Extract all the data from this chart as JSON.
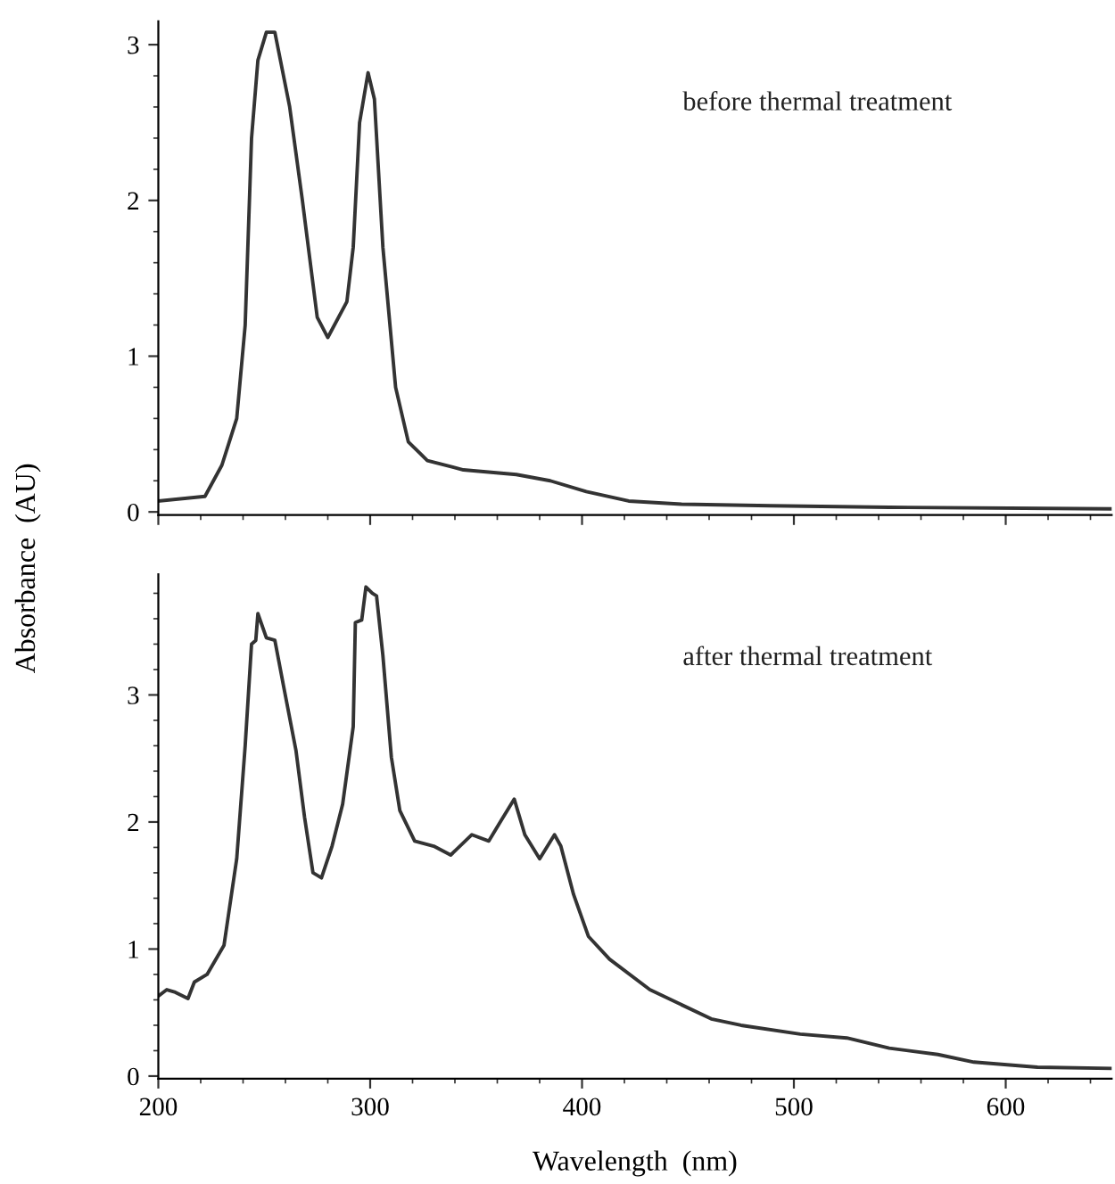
{
  "chart_data": [
    {
      "type": "line",
      "annotations": [
        "before thermal treatment"
      ],
      "xlim": [
        200,
        650
      ],
      "xticks": [
        {
          "value": 200,
          "label": null
        },
        {
          "value": 300,
          "label": null
        },
        {
          "value": 400,
          "label": null
        },
        {
          "value": 500,
          "label": null
        },
        {
          "value": 600,
          "label": null
        }
      ],
      "ylim": [
        -0.02,
        3.15
      ],
      "yticks": [
        0,
        1,
        2,
        3
      ],
      "tick_labels": "y",
      "grid": false,
      "legend": false,
      "series": [
        {
          "color": "#333333",
          "x": [
            200,
            222,
            230,
            237,
            241,
            244,
            247,
            251,
            255,
            262,
            268,
            275,
            280,
            289,
            292,
            295,
            299,
            302,
            306,
            312,
            318,
            327,
            344,
            369,
            385,
            402,
            422,
            447,
            489,
            545,
            650
          ],
          "values": [
            0.07,
            0.1,
            0.3,
            0.6,
            1.2,
            2.4,
            2.9,
            3.08,
            3.08,
            2.6,
            2.0,
            1.25,
            1.12,
            1.35,
            1.7,
            2.5,
            2.82,
            2.65,
            1.7,
            0.8,
            0.45,
            0.33,
            0.27,
            0.24,
            0.2,
            0.13,
            0.07,
            0.05,
            0.04,
            0.03,
            0.02
          ]
        }
      ]
    },
    {
      "type": "line",
      "annotations": [
        "after thermal treatment"
      ],
      "xlabel": "Wavelength  (nm)",
      "ylabel": "Absorbance  (AU)",
      "xlim": [
        200,
        650
      ],
      "xticks": [
        200,
        300,
        400,
        500,
        600
      ],
      "ylim": [
        -0.02,
        3.95
      ],
      "yticks": [
        0,
        1,
        2,
        3
      ],
      "grid": false,
      "legend": false,
      "series": [
        {
          "color": "#333333",
          "x": [
            200,
            204,
            208,
            214,
            217,
            223,
            231,
            237,
            241,
            244,
            246,
            247,
            251,
            255,
            259,
            265,
            269,
            273,
            277,
            282,
            287,
            292,
            293,
            296,
            298,
            301,
            303,
            306,
            310,
            314,
            321,
            330,
            338,
            348,
            356,
            361,
            368,
            373,
            380,
            387,
            390,
            396,
            403,
            413,
            432,
            461,
            475,
            503,
            525,
            545,
            568,
            585,
            615,
            650
          ],
          "values": [
            0.63,
            0.68,
            0.66,
            0.61,
            0.74,
            0.8,
            1.03,
            1.71,
            2.6,
            3.4,
            3.43,
            3.64,
            3.45,
            3.43,
            3.08,
            2.56,
            2.04,
            1.6,
            1.56,
            1.81,
            2.14,
            2.75,
            3.57,
            3.59,
            3.85,
            3.8,
            3.78,
            3.31,
            2.51,
            2.09,
            1.85,
            1.81,
            1.74,
            1.9,
            1.85,
            1.99,
            2.18,
            1.9,
            1.71,
            1.9,
            1.81,
            1.43,
            1.1,
            0.92,
            0.68,
            0.45,
            0.4,
            0.33,
            0.3,
            0.22,
            0.17,
            0.11,
            0.07,
            0.06
          ]
        }
      ]
    }
  ]
}
